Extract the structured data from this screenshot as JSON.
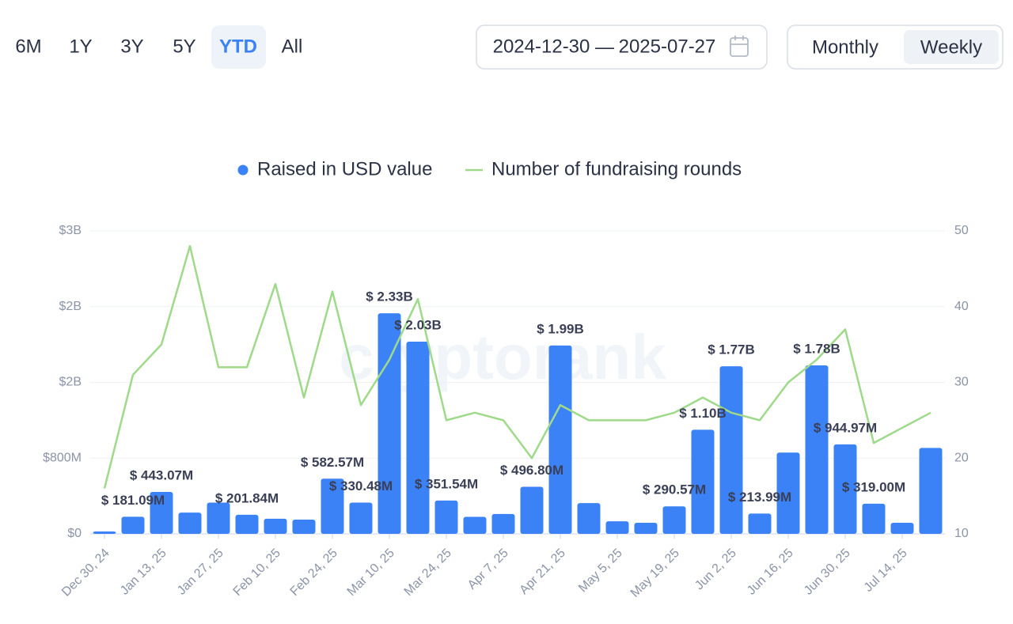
{
  "ui": {
    "ranges": [
      {
        "label": "6M",
        "selected": false
      },
      {
        "label": "1Y",
        "selected": false
      },
      {
        "label": "3Y",
        "selected": false
      },
      {
        "label": "5Y",
        "selected": false
      },
      {
        "label": "YTD",
        "selected": true
      },
      {
        "label": "All",
        "selected": false
      }
    ],
    "date_range": {
      "start": "2024-12-30",
      "separator": "—",
      "end": "2025-07-27"
    },
    "views": [
      {
        "label": "Monthly",
        "selected": false
      },
      {
        "label": "Weekly",
        "selected": true
      }
    ],
    "watermark": "cryptorank"
  },
  "chart_data": {
    "type": "bar",
    "categories": [
      "Dec 30, 24",
      null,
      "Jan 13, 25",
      null,
      "Jan 27, 25",
      null,
      "Feb 10, 25",
      null,
      "Feb 24, 25",
      null,
      "Mar 10, 25",
      null,
      "Mar 24, 25",
      null,
      "Apr 7, 25",
      null,
      "Apr 21, 25",
      null,
      "May 5, 25",
      null,
      "May 19, 25",
      null,
      "Jun 2, 25",
      null,
      "Jun 16, 25",
      null,
      "Jun 30, 25",
      null,
      "Jul 14, 25",
      null
    ],
    "series": [
      {
        "name": "Raised in USD value",
        "color": "#3b82f6",
        "axis": "y",
        "values": [
          25000000,
          181090000,
          443070000,
          225000000,
          330000000,
          201840000,
          160000000,
          150000000,
          582570000,
          330480000,
          2330000000,
          2030000000,
          351540000,
          180000000,
          210000000,
          496800000,
          1990000000,
          325000000,
          133000000,
          117000000,
          290570000,
          1100000000,
          1770000000,
          213990000,
          858000000,
          1780000000,
          944970000,
          319000000,
          117000000,
          908000000
        ],
        "value_labels": [
          null,
          "$ 181.09M",
          "$ 443.07M",
          null,
          null,
          "$ 201.84M",
          null,
          null,
          "$ 582.57M",
          "$ 330.48M",
          "$ 2.33B",
          "$ 2.03B",
          "$ 351.54M",
          null,
          null,
          "$ 496.80M",
          "$ 1.99B",
          null,
          null,
          null,
          "$ 290.57M",
          "$ 1.10B",
          "$ 1.77B",
          "$ 213.99M",
          null,
          "$ 1.78B",
          "$ 944.97M",
          "$ 319.00M",
          null,
          null
        ]
      },
      {
        "name": "Number of fundraising rounds",
        "color": "#9fd98a",
        "type": "line",
        "axis": "y2",
        "values": [
          16,
          31,
          35,
          48,
          32,
          32,
          43,
          28,
          42,
          27,
          33,
          41,
          25,
          26,
          25,
          20,
          27,
          25,
          25,
          25,
          26,
          28,
          26,
          25,
          30,
          33,
          37,
          22,
          24,
          26
        ]
      }
    ],
    "ylim": [
      0,
      3200000000
    ],
    "yticks": [
      {
        "value": 0,
        "label": "$0"
      },
      {
        "value": 800000000,
        "label": "$800M"
      },
      {
        "value": 1600000000,
        "label": "$2B"
      },
      {
        "value": 2400000000,
        "label": "$2B"
      },
      {
        "value": 3200000000,
        "label": "$3B"
      }
    ],
    "y2lim": [
      10,
      50
    ],
    "y2ticks": [
      10,
      20,
      30,
      40,
      50
    ],
    "grid": true,
    "legend": "top"
  }
}
